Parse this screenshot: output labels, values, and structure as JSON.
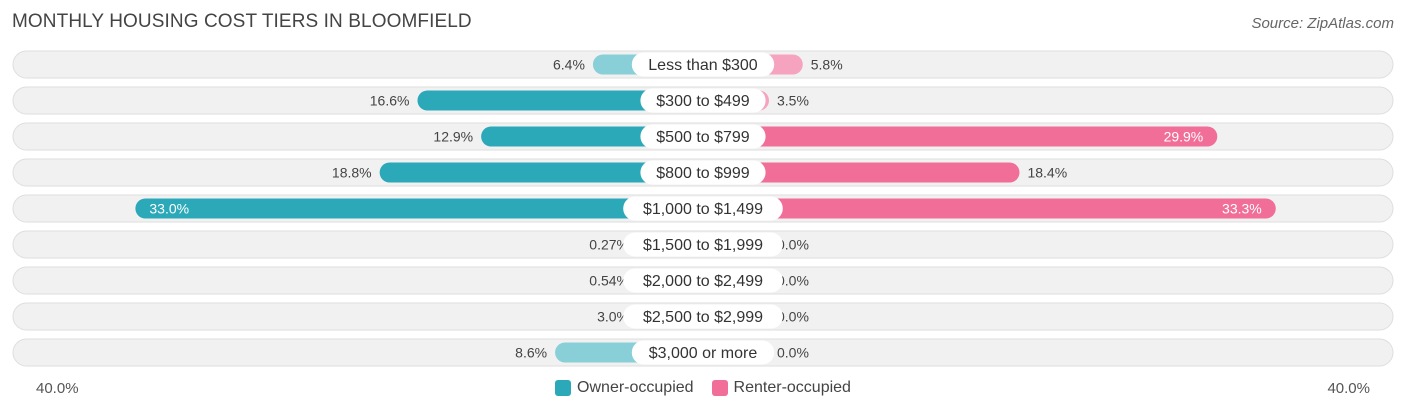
{
  "title": "MONTHLY HOUSING COST TIERS IN BLOOMFIELD",
  "source": "Source: ZipAtlas.com",
  "colors": {
    "owner": "#2ba9b9",
    "owner_light": "#88cfd8",
    "renter": "#f06e98",
    "renter_light": "#f6a3bf",
    "track": "#f1f1f1"
  },
  "axis": {
    "left_label": "40.0%",
    "right_label": "40.0%"
  },
  "legend": {
    "owner": "Owner-occupied",
    "renter": "Renter-occupied"
  },
  "chart_data": {
    "type": "bar",
    "orientation": "horizontal-diverging",
    "categories": [
      "Less than $300",
      "$300 to $499",
      "$500 to $799",
      "$800 to $999",
      "$1,000 to $1,499",
      "$1,500 to $1,999",
      "$2,000 to $2,499",
      "$2,500 to $2,999",
      "$3,000 or more"
    ],
    "series": [
      {
        "name": "Owner-occupied",
        "values": [
          6.4,
          16.6,
          12.9,
          18.8,
          33.0,
          0.27,
          0.54,
          3.0,
          8.6
        ],
        "labels": [
          "6.4%",
          "16.6%",
          "12.9%",
          "18.8%",
          "33.0%",
          "0.27%",
          "0.54%",
          "3.0%",
          "8.6%"
        ]
      },
      {
        "name": "Renter-occupied",
        "values": [
          5.8,
          3.5,
          29.9,
          18.4,
          33.3,
          0.0,
          0.0,
          0.0,
          0.0
        ],
        "labels": [
          "5.8%",
          "3.5%",
          "29.9%",
          "18.4%",
          "33.3%",
          "0.0%",
          "0.0%",
          "0.0%",
          "0.0%"
        ]
      }
    ],
    "xlim": [
      -40,
      40
    ],
    "legend_position": "bottom-center"
  }
}
